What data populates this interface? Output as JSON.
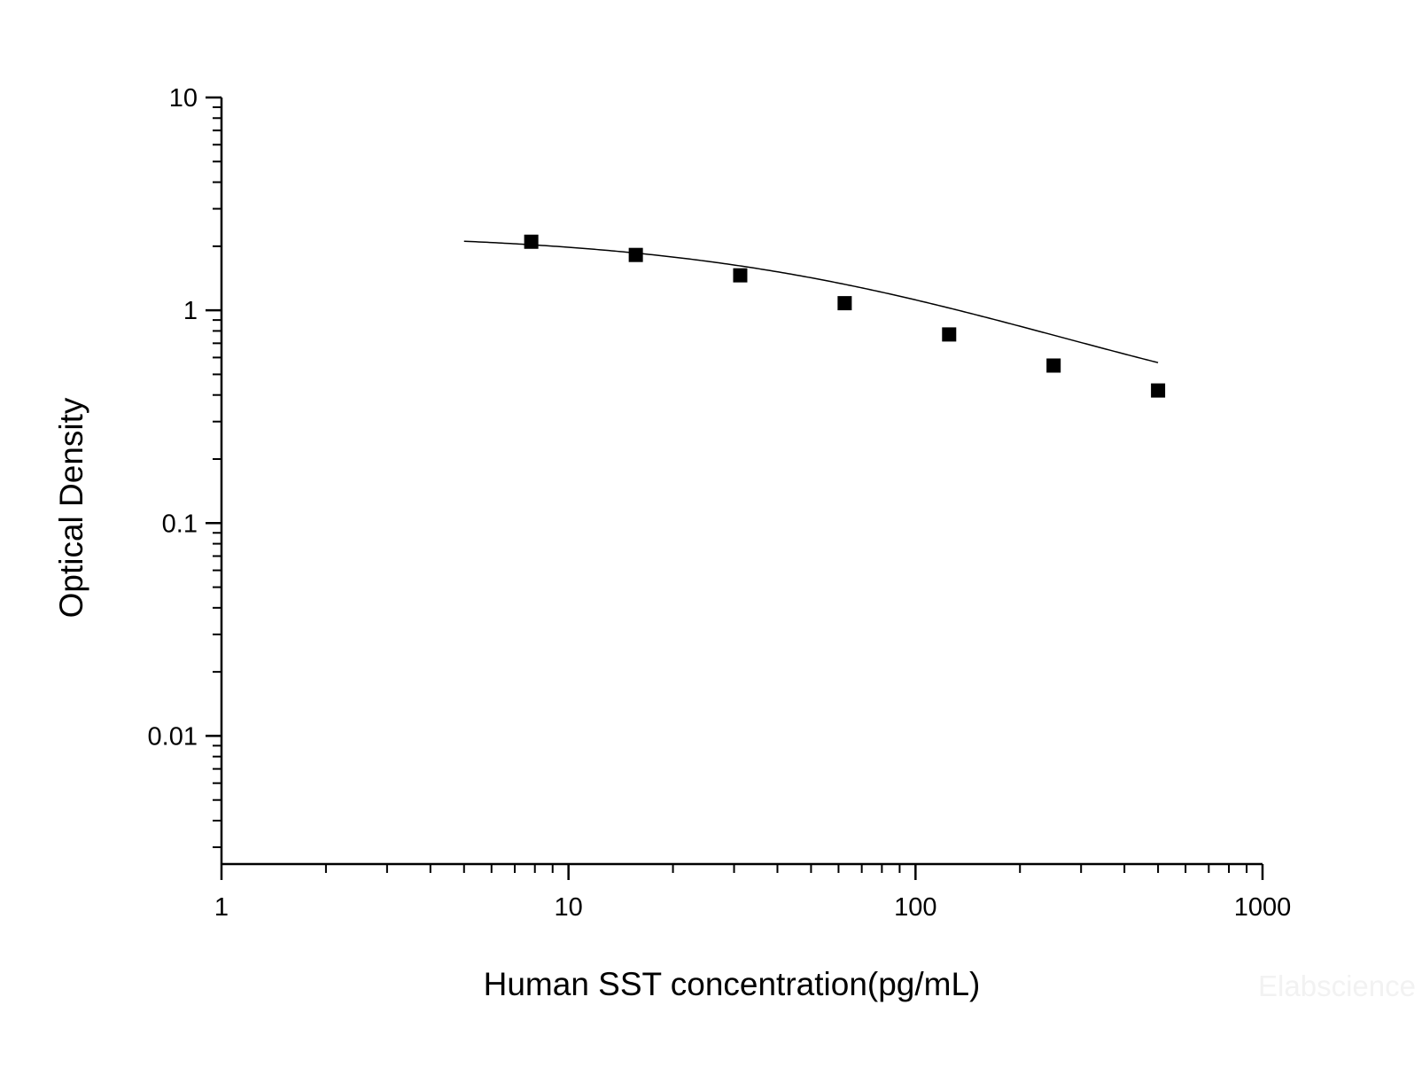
{
  "chart_data": {
    "type": "scatter",
    "title": "",
    "xlabel": "Human SST concentration(pg/mL)",
    "ylabel": "Optical Density",
    "x_scale": "log",
    "y_scale": "log",
    "xlim": [
      1,
      1000
    ],
    "ylim": [
      0.0025,
      10
    ],
    "x_ticks": [
      {
        "value": 1,
        "label": "1"
      },
      {
        "value": 10,
        "label": "10"
      },
      {
        "value": 100,
        "label": "100"
      },
      {
        "value": 1000,
        "label": "1000"
      }
    ],
    "y_ticks": [
      {
        "value": 0.01,
        "label": "0.01"
      },
      {
        "value": 0.1,
        "label": "0.1"
      },
      {
        "value": 1,
        "label": "1"
      },
      {
        "value": 10,
        "label": "10"
      }
    ],
    "grid": false,
    "legend": "none",
    "series": [
      {
        "marker": "square",
        "color": "#000000",
        "points": [
          {
            "x": 7.81,
            "y": 2.1
          },
          {
            "x": 15.63,
            "y": 1.82
          },
          {
            "x": 31.25,
            "y": 1.46
          },
          {
            "x": 62.5,
            "y": 1.08
          },
          {
            "x": 125,
            "y": 0.77
          },
          {
            "x": 250,
            "y": 0.55
          },
          {
            "x": 500,
            "y": 0.42
          }
        ]
      }
    ],
    "fit_curve": {
      "model": "4PL",
      "a": 2.31,
      "b": 0.85,
      "c": 70,
      "d": 0.24,
      "x_range": [
        5,
        500
      ],
      "color": "#000000"
    }
  },
  "watermark": {
    "text": "Elabscience"
  }
}
